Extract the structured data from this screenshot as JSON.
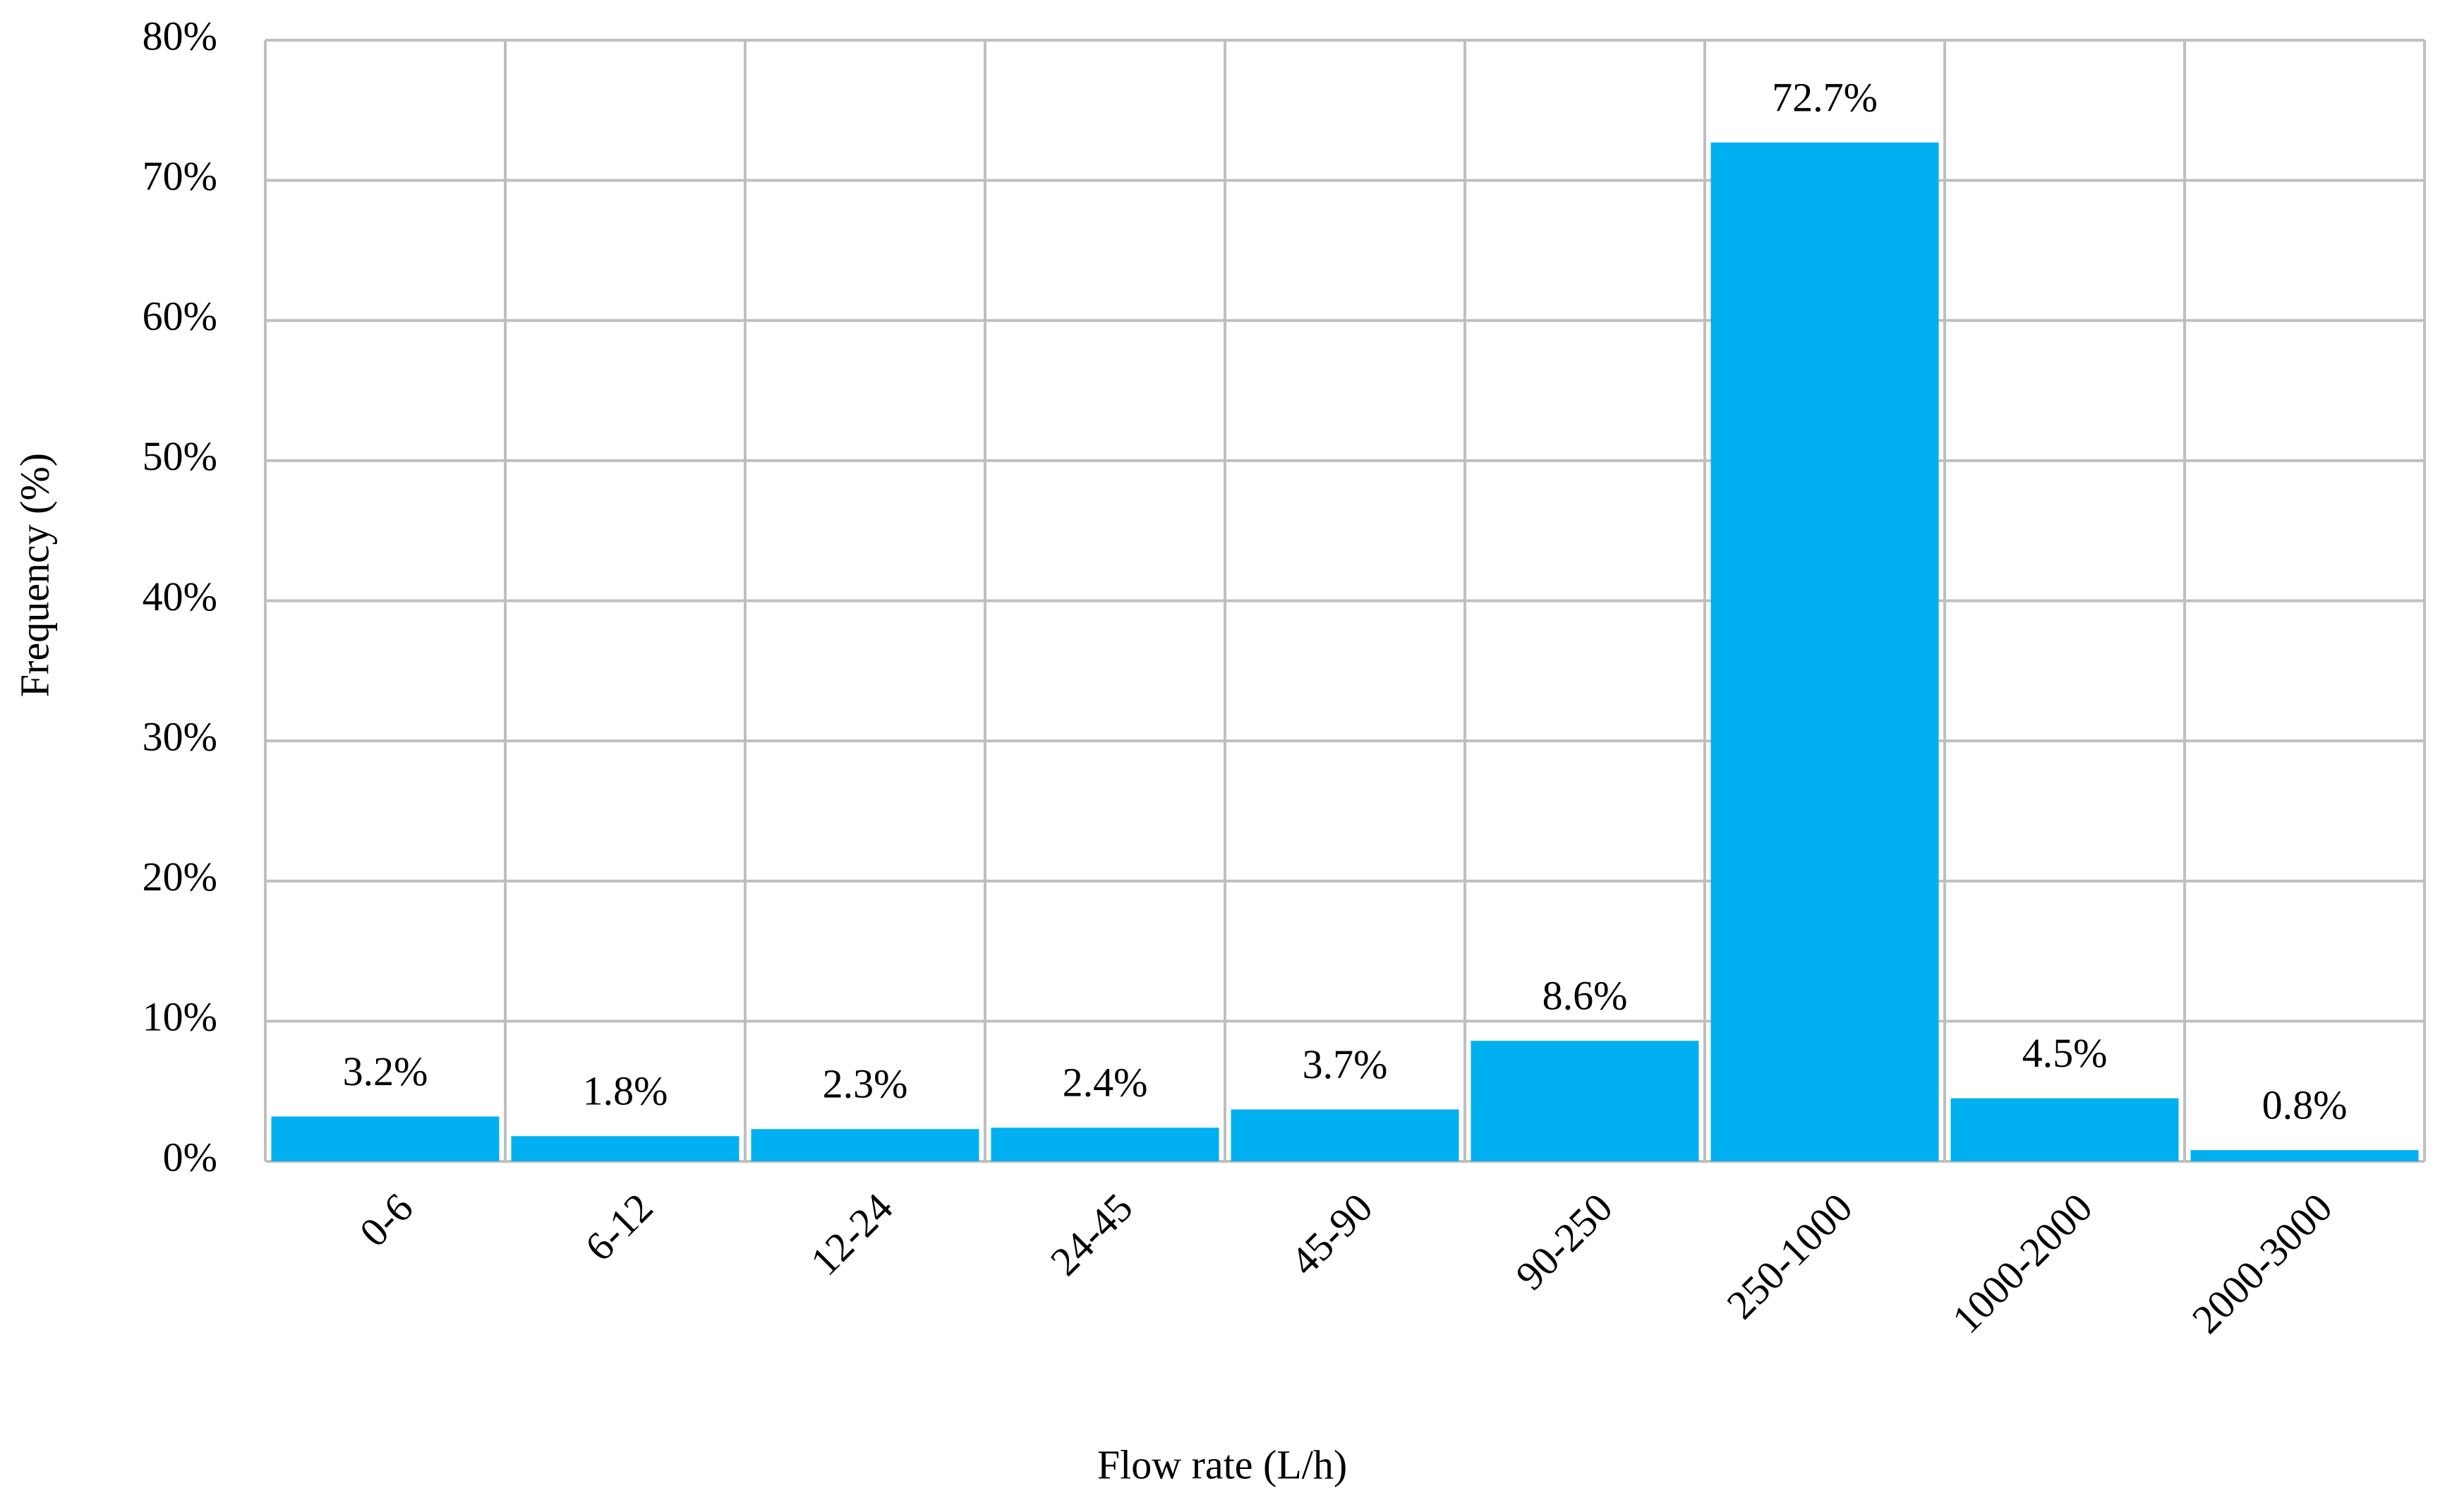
{
  "chart_data": {
    "type": "bar",
    "x_label": "Flow rate (L/h)",
    "y_label": "Frequency  (%)",
    "categories": [
      "0-6",
      "6-12",
      "12-24",
      "24-45",
      "45-90",
      "90-250",
      "250-1000",
      "1000-2000",
      "2000-3000"
    ],
    "values": [
      3.2,
      1.8,
      2.3,
      2.4,
      3.7,
      8.6,
      72.7,
      4.5,
      0.8
    ],
    "value_labels": [
      "3.2%",
      "1.8%",
      "2.3%",
      "2.4%",
      "3.7%",
      "8.6%",
      "72.7%",
      "4.5%",
      "0.8%"
    ],
    "color": "#00b0f0",
    "ylim": [
      0,
      80
    ],
    "yticks": [
      {
        "value": 0,
        "label": "0%"
      },
      {
        "value": 10,
        "label": "10%"
      },
      {
        "value": 20,
        "label": "20%"
      },
      {
        "value": 30,
        "label": "30%"
      },
      {
        "value": 40,
        "label": "40%"
      },
      {
        "value": 50,
        "label": "50%"
      },
      {
        "value": 60,
        "label": "60%"
      },
      {
        "value": 70,
        "label": "70%"
      },
      {
        "value": 80,
        "label": "80%"
      }
    ],
    "grid": true
  }
}
